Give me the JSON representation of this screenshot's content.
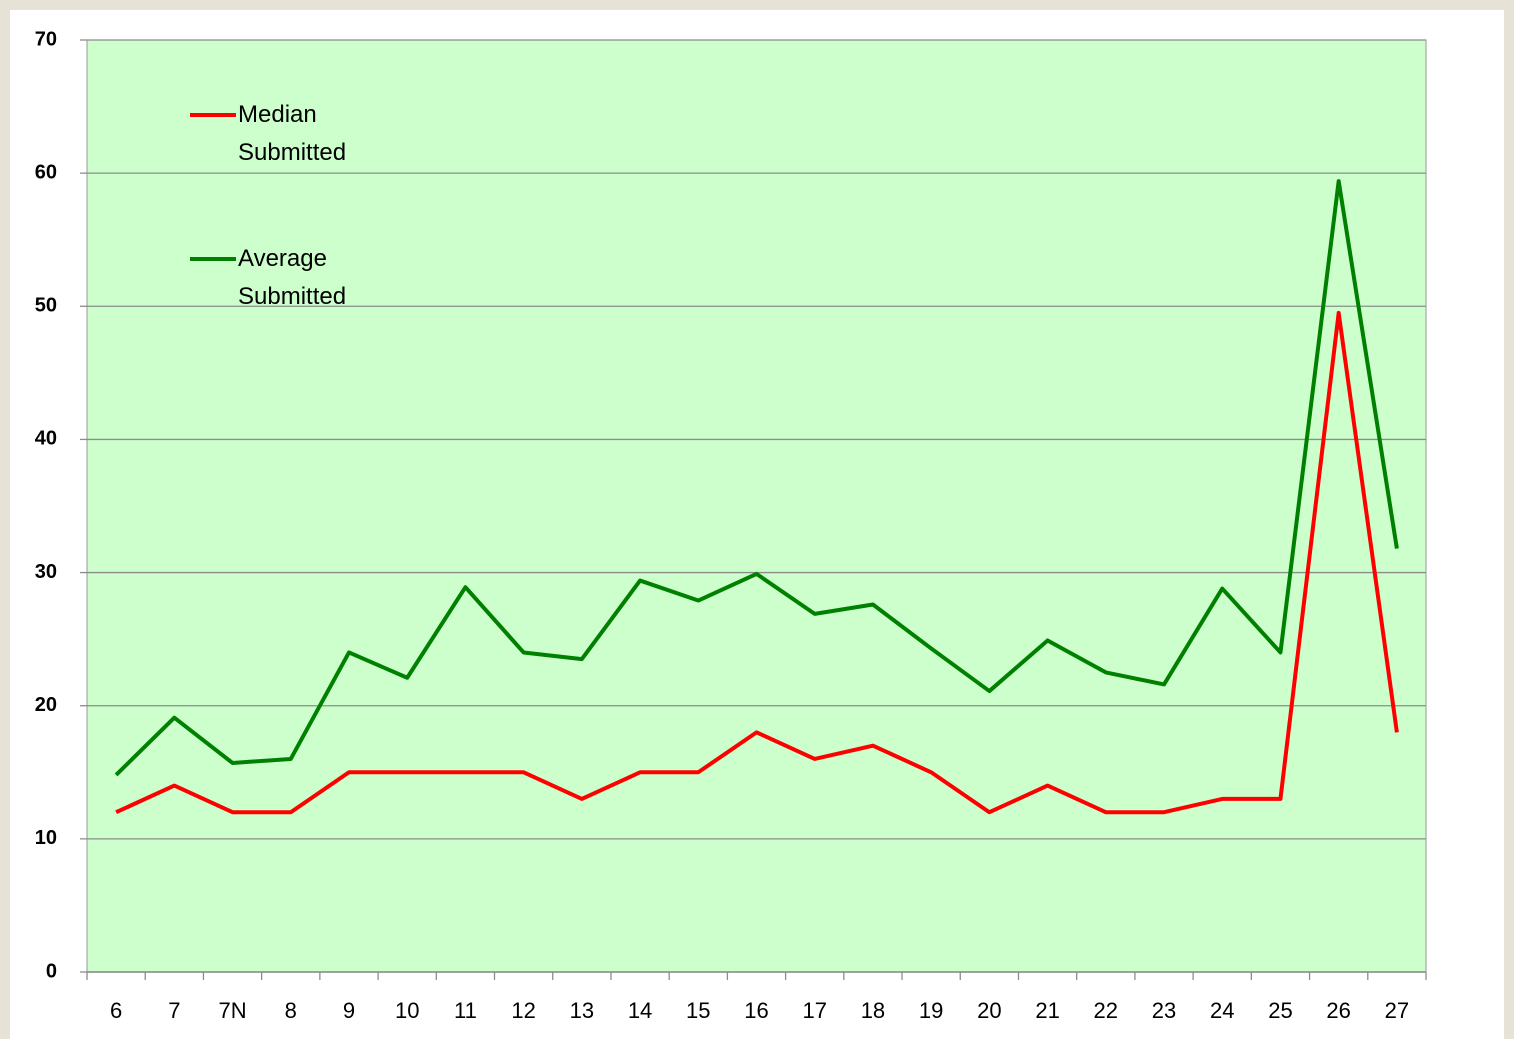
{
  "chart_data": {
    "type": "line",
    "categories": [
      "6",
      "7",
      "7N",
      "8",
      "9",
      "10",
      "11",
      "12",
      "13",
      "14",
      "15",
      "16",
      "17",
      "18",
      "19",
      "20",
      "21",
      "22",
      "23",
      "24",
      "25",
      "26",
      "27"
    ],
    "series": [
      {
        "name": "Median Submitted",
        "color": "#ff0000",
        "values": [
          12,
          14,
          12,
          12,
          15,
          15,
          15,
          15,
          13,
          15,
          15,
          18,
          16,
          17,
          15,
          12,
          14,
          12,
          12,
          13,
          13,
          49.5,
          18
        ]
      },
      {
        "name": "Average Submitted",
        "color": "#008000",
        "values": [
          14.8,
          19.1,
          15.7,
          16.0,
          24.0,
          22.1,
          28.9,
          24.0,
          23.5,
          29.4,
          27.9,
          29.9,
          26.9,
          27.6,
          24.3,
          21.1,
          24.9,
          22.5,
          21.6,
          28.8,
          24.0,
          59.4,
          31.8
        ]
      }
    ],
    "ylim": [
      0,
      70
    ],
    "yticks": [
      0,
      10,
      20,
      30,
      40,
      50,
      60,
      70
    ],
    "grid": true,
    "background": "#ccffcc"
  }
}
